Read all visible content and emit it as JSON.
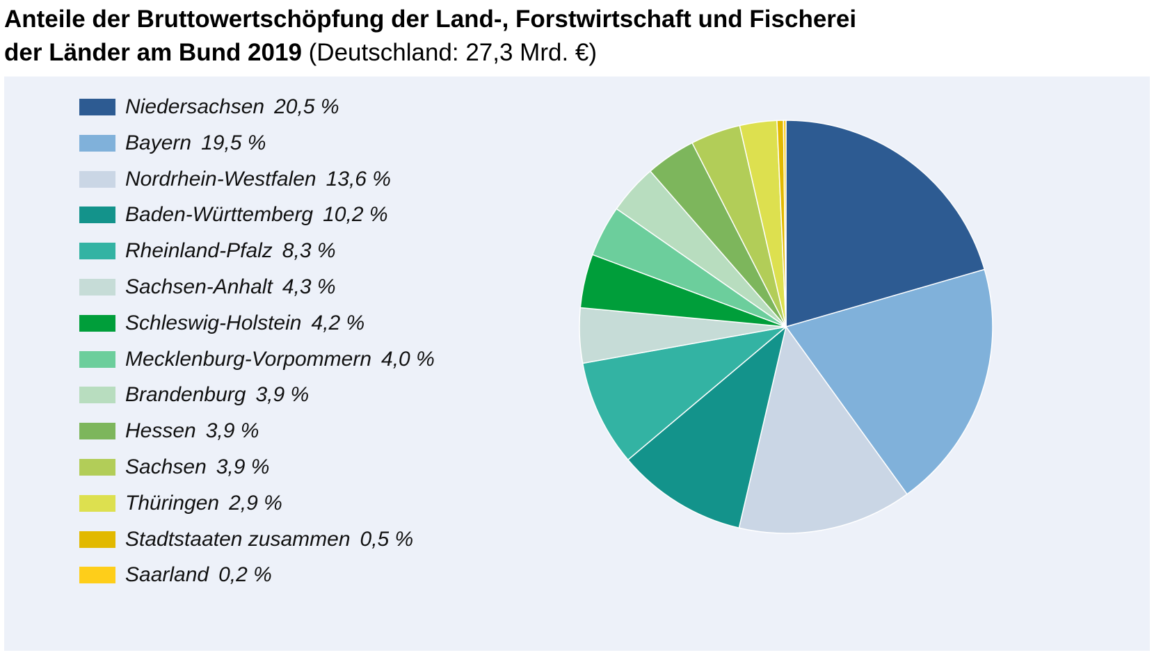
{
  "title": {
    "line1": "Anteile der Bruttowertschöpfung der Land-, Forstwirtschaft und Fischerei",
    "line2_bold": "der Länder am Bund 2019",
    "line2_normal": " (Deutschland: 27,3 Mrd. €)"
  },
  "colors": {
    "panel_background": "#edf1f9"
  },
  "chart_data": {
    "type": "pie",
    "title": "Anteile der Bruttowertschöpfung der Land-, Forstwirtschaft und Fischerei der Länder am Bund 2019",
    "subtitle": "(Deutschland: 27,3 Mrd. €)",
    "legend_position": "left",
    "start": "top, clockwise",
    "slices": [
      {
        "label": "Niedersachsen",
        "value": 20.5,
        "value_text": "20,5 %",
        "color": "#2d5b92"
      },
      {
        "label": "Bayern",
        "value": 19.5,
        "value_text": "19,5 %",
        "color": "#80b1da"
      },
      {
        "label": "Nordrhein-Westfalen",
        "value": 13.6,
        "value_text": "13,6 %",
        "color": "#cad6e5"
      },
      {
        "label": "Baden-Württemberg",
        "value": 10.2,
        "value_text": "10,2 %",
        "color": "#13938b"
      },
      {
        "label": "Rheinland-Pfalz",
        "value": 8.3,
        "value_text": "8,3 %",
        "color": "#33b3a3"
      },
      {
        "label": "Sachsen-Anhalt",
        "value": 4.3,
        "value_text": "4,3 %",
        "color": "#c6dcd7"
      },
      {
        "label": "Schleswig-Holstein",
        "value": 4.2,
        "value_text": "4,2 %",
        "color": "#009e3a"
      },
      {
        "label": "Mecklenburg-Vorpommern",
        "value": 4.0,
        "value_text": "4,0 %",
        "color": "#6cce9c"
      },
      {
        "label": "Brandenburg",
        "value": 3.9,
        "value_text": "3,9 %",
        "color": "#b8ddbf"
      },
      {
        "label": "Hessen",
        "value": 3.9,
        "value_text": "3,9 %",
        "color": "#7db65c"
      },
      {
        "label": "Sachsen",
        "value": 3.9,
        "value_text": "3,9 %",
        "color": "#b2cd58"
      },
      {
        "label": "Thüringen",
        "value": 2.9,
        "value_text": "2,9 %",
        "color": "#dde04f"
      },
      {
        "label": "Stadtstaaten zusammen",
        "value": 0.5,
        "value_text": "0,5 %",
        "color": "#e2b900"
      },
      {
        "label": "Saarland",
        "value": 0.2,
        "value_text": "0,2 %",
        "color": "#fece1a"
      }
    ]
  }
}
